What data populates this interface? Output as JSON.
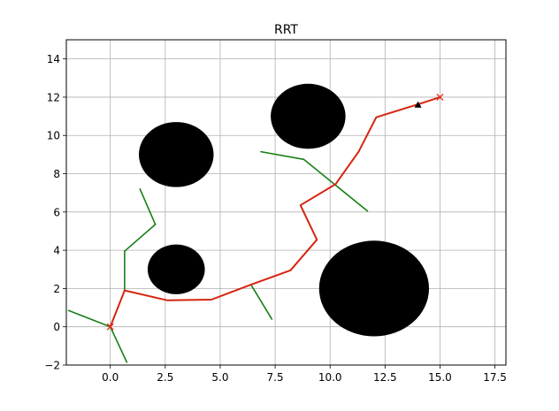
{
  "chart_data": {
    "type": "scatter",
    "title": "RRT",
    "xlabel": "",
    "ylabel": "",
    "xlim": [
      -2,
      18
    ],
    "ylim": [
      -2,
      15
    ],
    "xticks": [
      0.0,
      2.5,
      5.0,
      7.5,
      10.0,
      12.5,
      15.0,
      17.5
    ],
    "xtick_labels": [
      "0.0",
      "2.5",
      "5.0",
      "7.5",
      "10.0",
      "12.5",
      "15.0",
      "17.5"
    ],
    "yticks": [
      -2,
      0,
      2,
      4,
      6,
      8,
      10,
      12,
      14
    ],
    "ytick_labels": [
      "−2",
      "0",
      "2",
      "4",
      "6",
      "8",
      "10",
      "12",
      "14"
    ],
    "grid": true,
    "obstacles": [
      {
        "x": 3,
        "y": 9,
        "r": 1.7
      },
      {
        "x": 3,
        "y": 3,
        "r": 1.3
      },
      {
        "x": 9,
        "y": 11,
        "r": 1.7
      },
      {
        "x": 12,
        "y": 2,
        "r": 2.5
      }
    ],
    "tree_edges": [
      [
        [
          0,
          0
        ],
        [
          -1.9,
          0.85
        ]
      ],
      [
        [
          0,
          0
        ],
        [
          0.75,
          -1.85
        ]
      ],
      [
        [
          0.65,
          1.9
        ],
        [
          0.65,
          3.95
        ]
      ],
      [
        [
          0.65,
          3.95
        ],
        [
          2.05,
          5.35
        ]
      ],
      [
        [
          2.05,
          5.35
        ],
        [
          1.35,
          7.2
        ]
      ],
      [
        [
          6.4,
          2.2
        ],
        [
          7.35,
          0.4
        ]
      ],
      [
        [
          6.85,
          9.15
        ],
        [
          8.8,
          8.75
        ]
      ],
      [
        [
          8.8,
          8.75
        ],
        [
          11.7,
          6.05
        ]
      ]
    ],
    "path": [
      [
        0,
        0
      ],
      [
        0.65,
        1.9
      ],
      [
        2.6,
        1.38
      ],
      [
        4.6,
        1.42
      ],
      [
        6.4,
        2.2
      ],
      [
        8.2,
        2.95
      ],
      [
        9.4,
        4.55
      ],
      [
        8.65,
        6.35
      ],
      [
        10.25,
        7.45
      ],
      [
        11.3,
        9.15
      ],
      [
        12.1,
        10.95
      ],
      [
        14.2,
        11.7
      ],
      [
        15,
        12
      ]
    ],
    "markers": [
      {
        "x": 0,
        "y": 0,
        "symbol": "x",
        "color": "#e8281e"
      },
      {
        "x": 15,
        "y": 12,
        "symbol": "x",
        "color": "#e8281e"
      },
      {
        "x": 14,
        "y": 11.6,
        "symbol": "triangle",
        "color": "#000000"
      }
    ],
    "colors": {
      "tree": "#168016",
      "path": "#d62410",
      "obstacle": "#000000",
      "grid": "#b0b0b0"
    }
  }
}
